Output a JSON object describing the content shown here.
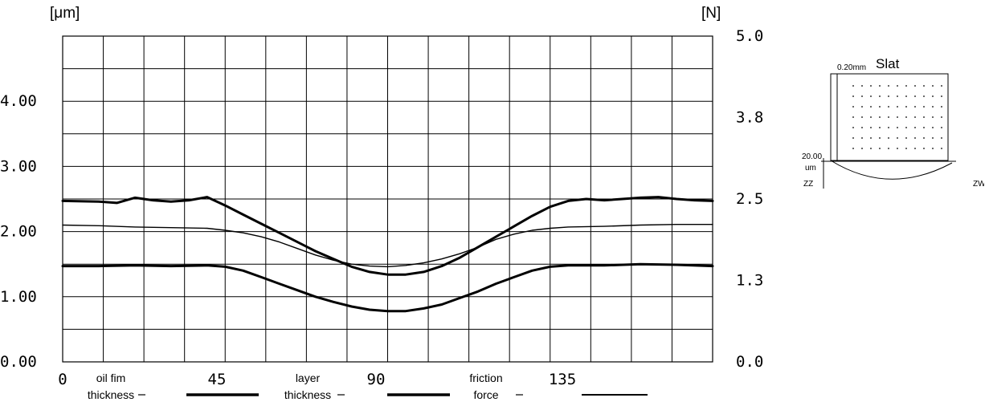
{
  "chart_data": {
    "type": "line",
    "left_axis_unit": "[μm]",
    "right_axis_unit": "[N]",
    "left_ticks": [
      "0.00",
      "1.00",
      "2.00",
      "3.00",
      "4.00"
    ],
    "left_tick_values": [
      0,
      1,
      2,
      3,
      4
    ],
    "right_ticks": [
      "0.0",
      "1.3",
      "2.5",
      "3.8",
      "5.0"
    ],
    "right_tick_values": [
      0,
      1.25,
      2.5,
      3.75,
      5.0
    ],
    "ylim": [
      0,
      5
    ],
    "xlim": [
      0,
      180
    ],
    "x_ticks": [
      "0",
      "45",
      "90",
      "135"
    ],
    "x_tick_values": [
      0,
      45,
      90,
      135
    ],
    "grid": true,
    "series": [
      {
        "name": "oil fim thickness",
        "legend_label_lines": [
          "oil fim",
          "thickness"
        ],
        "stroke": "#000000",
        "weight": "thick",
        "x": [
          0,
          10,
          15,
          20,
          25,
          30,
          35,
          40,
          45,
          50,
          55,
          60,
          65,
          70,
          75,
          80,
          85,
          90,
          95,
          100,
          105,
          110,
          115,
          120,
          125,
          130,
          135,
          140,
          145,
          150,
          155,
          160,
          165,
          170,
          175,
          180
        ],
        "y": [
          2.47,
          2.46,
          2.44,
          2.52,
          2.48,
          2.46,
          2.48,
          2.53,
          2.4,
          2.26,
          2.12,
          1.98,
          1.84,
          1.7,
          1.58,
          1.46,
          1.38,
          1.34,
          1.34,
          1.38,
          1.47,
          1.6,
          1.76,
          1.92,
          2.08,
          2.24,
          2.38,
          2.47,
          2.5,
          2.48,
          2.5,
          2.52,
          2.53,
          2.5,
          2.48,
          2.47
        ]
      },
      {
        "name": "layer thickness",
        "legend_label_lines": [
          "layer",
          "thickness"
        ],
        "stroke": "#000000",
        "weight": "thick",
        "x": [
          0,
          10,
          20,
          30,
          40,
          45,
          50,
          55,
          60,
          65,
          70,
          75,
          80,
          85,
          90,
          95,
          100,
          105,
          110,
          115,
          120,
          125,
          130,
          135,
          140,
          150,
          160,
          170,
          180
        ],
        "y": [
          1.47,
          1.47,
          1.48,
          1.47,
          1.48,
          1.46,
          1.4,
          1.3,
          1.2,
          1.1,
          1.0,
          0.92,
          0.85,
          0.8,
          0.78,
          0.78,
          0.82,
          0.88,
          0.98,
          1.08,
          1.2,
          1.3,
          1.4,
          1.46,
          1.48,
          1.48,
          1.5,
          1.49,
          1.47
        ]
      },
      {
        "name": "friction force",
        "legend_label_lines": [
          "friction",
          "force"
        ],
        "stroke": "#000000",
        "weight": "thin",
        "x": [
          0,
          10,
          20,
          30,
          40,
          45,
          50,
          55,
          60,
          65,
          70,
          75,
          80,
          85,
          90,
          95,
          100,
          105,
          110,
          115,
          120,
          125,
          130,
          135,
          140,
          150,
          160,
          170,
          180
        ],
        "y": [
          2.1,
          2.09,
          2.07,
          2.06,
          2.05,
          2.02,
          1.98,
          1.92,
          1.84,
          1.74,
          1.64,
          1.56,
          1.5,
          1.47,
          1.46,
          1.48,
          1.52,
          1.58,
          1.66,
          1.76,
          1.88,
          1.96,
          2.02,
          2.05,
          2.07,
          2.08,
          2.1,
          2.11,
          2.11
        ]
      }
    ]
  },
  "inset": {
    "title": "Slat",
    "width_label": "0.20mm",
    "depth_value": "20.00",
    "depth_unit": "um",
    "left_marker": "ZZ",
    "right_marker": "ZW"
  }
}
